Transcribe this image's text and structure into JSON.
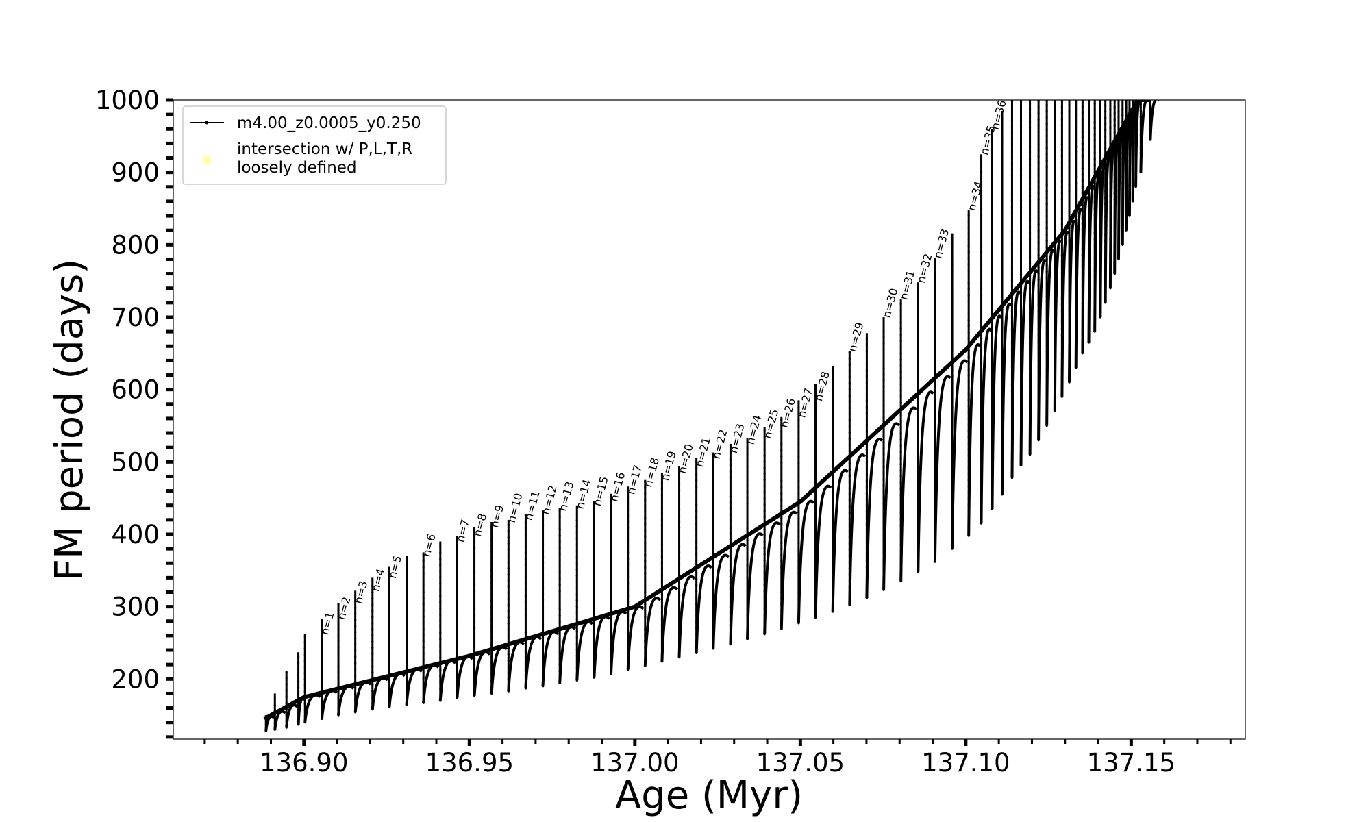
{
  "chart_data": {
    "type": "line",
    "xlabel": "Age (Myr)",
    "ylabel": "FM period (days)",
    "xlim": [
      136.8605,
      137.1845
    ],
    "ylim": [
      117,
      1000
    ],
    "x_major_ticks": [
      136.9,
      136.95,
      137.0,
      137.05,
      137.1,
      137.15
    ],
    "x_tick_labels": [
      "136.90",
      "136.95",
      "137.00",
      "137.05",
      "137.10",
      "137.15"
    ],
    "x_minor_step": 0.01,
    "y_major_ticks": [
      200,
      300,
      400,
      500,
      600,
      700,
      800,
      900,
      1000
    ],
    "y_tick_labels": [
      "200",
      "300",
      "400",
      "500",
      "600",
      "700",
      "800",
      "900",
      "1000"
    ],
    "y_minor_step": 20,
    "grid": false,
    "legend": {
      "placement": "top-left",
      "entries": [
        {
          "label": "m4.00_z0.0005_y0.250",
          "marker": "line-dot",
          "color": "#000000"
        },
        {
          "label_lines": [
            "intersection w/ P,L,T,R",
            "loosely defined"
          ],
          "marker": "circle",
          "color": "#ffff99"
        }
      ]
    },
    "series": [
      {
        "name": "m4.00_z0.0005_y0.250",
        "color": "#000000",
        "baseline": {
          "x": [
            136.888,
            136.9,
            136.95,
            137.0,
            137.05,
            137.1,
            137.13,
            137.152
          ],
          "y": [
            145,
            175,
            232,
            300,
            445,
            655,
            820,
            1000
          ]
        },
        "pulses": {
          "x": [
            136.8885,
            136.8912,
            136.8947,
            136.8983,
            136.9003,
            136.9054,
            136.9104,
            136.9155,
            136.9207,
            136.9258,
            136.931,
            136.9361,
            136.9412,
            136.9463,
            136.9515,
            136.9567,
            136.9618,
            136.967,
            136.9722,
            136.9773,
            136.9825,
            136.9877,
            136.9928,
            136.9979,
            137.0031,
            137.0082,
            137.0134,
            137.0186,
            137.0237,
            137.0289,
            137.034,
            137.0392,
            137.0443,
            137.0495,
            137.0546,
            137.0598,
            137.0649,
            137.0701,
            137.0752,
            137.0804,
            137.0856,
            137.0907,
            137.0959,
            137.1009,
            137.1047,
            137.108,
            137.111,
            137.114,
            137.1167,
            137.1194,
            137.122,
            137.1245,
            137.1269,
            137.1291,
            137.1313,
            137.1333,
            137.1353,
            137.1372,
            137.139,
            137.1407,
            137.1422,
            137.1437,
            137.145,
            137.1462,
            137.1474,
            137.1485,
            137.1495,
            137.1505,
            137.1514,
            137.1529,
            137.1558
          ],
          "peak": [
            150,
            180,
            210,
            237,
            262,
            283,
            305,
            322,
            340,
            355,
            370,
            375,
            390,
            398,
            410,
            417,
            420,
            428,
            433,
            436,
            440,
            446,
            456,
            466,
            475,
            485,
            494,
            505,
            513,
            525,
            533,
            548,
            562,
            585,
            608,
            632,
            653,
            678,
            700,
            725,
            748,
            782,
            815,
            848,
            925,
            960,
            985,
            1000,
            1000,
            1000,
            1000,
            1000,
            1000,
            1000,
            1000,
            1000,
            1000,
            1000,
            1000,
            1000,
            1000,
            1000,
            1000,
            1000,
            1000,
            1000,
            1000,
            1000,
            1000,
            1000,
            1000
          ],
          "trough": [
            128,
            130,
            133,
            137,
            140,
            145,
            150,
            154,
            158,
            161,
            164,
            167,
            170,
            174,
            177,
            180,
            183,
            187,
            190,
            194,
            198,
            202,
            207,
            213,
            218,
            224,
            230,
            236,
            242,
            248,
            255,
            262,
            269,
            277,
            285,
            293,
            302,
            312,
            323,
            335,
            348,
            362,
            380,
            398,
            415,
            435,
            455,
            478,
            495,
            510,
            530,
            550,
            570,
            590,
            610,
            630,
            650,
            665,
            680,
            700,
            720,
            740,
            760,
            780,
            800,
            820,
            840,
            860,
            880,
            900,
            945
          ]
        }
      }
    ],
    "annotations": [
      {
        "label": "n=1",
        "x": 136.9054,
        "y": 262
      },
      {
        "label": "n=2",
        "x": 136.9104,
        "y": 283
      },
      {
        "label": "n=3",
        "x": 136.9155,
        "y": 305
      },
      {
        "label": "n=4",
        "x": 136.9207,
        "y": 322
      },
      {
        "label": "n=5",
        "x": 136.9258,
        "y": 340
      },
      {
        "label": "n=6",
        "x": 136.9361,
        "y": 370
      },
      {
        "label": "n=7",
        "x": 136.9463,
        "y": 390
      },
      {
        "label": "n=8",
        "x": 136.9515,
        "y": 398
      },
      {
        "label": "n=9",
        "x": 136.9567,
        "y": 410
      },
      {
        "label": "n=10",
        "x": 136.9618,
        "y": 417
      },
      {
        "label": "n=11",
        "x": 136.967,
        "y": 420
      },
      {
        "label": "n=12",
        "x": 136.9722,
        "y": 428
      },
      {
        "label": "n=13",
        "x": 136.9773,
        "y": 433
      },
      {
        "label": "n=14",
        "x": 136.9825,
        "y": 436
      },
      {
        "label": "n=15",
        "x": 136.9877,
        "y": 440
      },
      {
        "label": "n=16",
        "x": 136.9928,
        "y": 446
      },
      {
        "label": "n=17",
        "x": 136.9979,
        "y": 456
      },
      {
        "label": "n=18",
        "x": 137.0031,
        "y": 466
      },
      {
        "label": "n=19",
        "x": 137.0082,
        "y": 475
      },
      {
        "label": "n=20",
        "x": 137.0134,
        "y": 485
      },
      {
        "label": "n=21",
        "x": 137.0186,
        "y": 494
      },
      {
        "label": "n=22",
        "x": 137.0237,
        "y": 505
      },
      {
        "label": "n=23",
        "x": 137.0289,
        "y": 513
      },
      {
        "label": "n=24",
        "x": 137.034,
        "y": 525
      },
      {
        "label": "n=25",
        "x": 137.0392,
        "y": 533
      },
      {
        "label": "n=26",
        "x": 137.0443,
        "y": 548
      },
      {
        "label": "n=27",
        "x": 137.0495,
        "y": 562
      },
      {
        "label": "n=28",
        "x": 137.0546,
        "y": 585
      },
      {
        "label": "n=29",
        "x": 137.0649,
        "y": 653
      },
      {
        "label": "n=30",
        "x": 137.0752,
        "y": 700
      },
      {
        "label": "n=31",
        "x": 137.0804,
        "y": 725
      },
      {
        "label": "n=32",
        "x": 137.0856,
        "y": 748
      },
      {
        "label": "n=33",
        "x": 137.0907,
        "y": 782
      },
      {
        "label": "n=34",
        "x": 137.1009,
        "y": 848
      },
      {
        "label": "n=35",
        "x": 137.1047,
        "y": 925
      },
      {
        "label": "n=36",
        "x": 137.108,
        "y": 960
      }
    ]
  }
}
